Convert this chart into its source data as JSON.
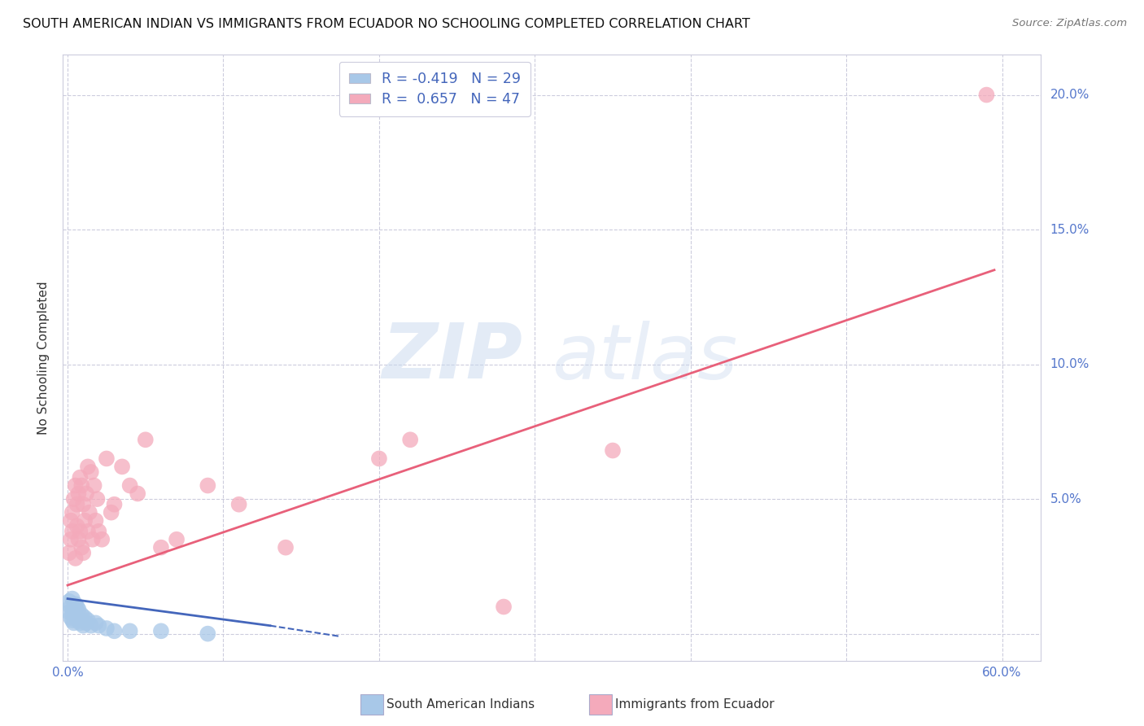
{
  "title": "SOUTH AMERICAN INDIAN VS IMMIGRANTS FROM ECUADOR NO SCHOOLING COMPLETED CORRELATION CHART",
  "source": "Source: ZipAtlas.com",
  "ylabel": "No Schooling Completed",
  "watermark_zip": "ZIP",
  "watermark_atlas": "atlas",
  "legend_blue_r": "R = -0.419",
  "legend_blue_n": "N = 29",
  "legend_pink_r": "R =  0.657",
  "legend_pink_n": "N = 47",
  "blue_color": "#A8C8E8",
  "pink_color": "#F4AABB",
  "blue_line_color": "#4466BB",
  "pink_line_color": "#E8607A",
  "background_color": "#FFFFFF",
  "grid_color": "#CCCCDD",
  "tick_color": "#5577CC",
  "legend_text_color": "#4466BB",
  "title_color": "#111111",
  "source_color": "#777777",
  "ylabel_color": "#333333",
  "xlim": [
    -0.003,
    0.625
  ],
  "ylim": [
    -0.01,
    0.215
  ],
  "yticks": [
    0.0,
    0.05,
    0.1,
    0.15,
    0.2
  ],
  "ytick_labels": [
    "",
    "5.0%",
    "10.0%",
    "15.0%",
    "20.0%"
  ],
  "blue_scatter_x": [
    0.001,
    0.001,
    0.002,
    0.002,
    0.003,
    0.003,
    0.003,
    0.004,
    0.004,
    0.005,
    0.005,
    0.006,
    0.006,
    0.007,
    0.007,
    0.008,
    0.009,
    0.01,
    0.011,
    0.012,
    0.013,
    0.015,
    0.018,
    0.02,
    0.025,
    0.03,
    0.04,
    0.06,
    0.09
  ],
  "blue_scatter_y": [
    0.008,
    0.012,
    0.006,
    0.01,
    0.005,
    0.008,
    0.013,
    0.004,
    0.009,
    0.007,
    0.011,
    0.006,
    0.01,
    0.005,
    0.009,
    0.004,
    0.007,
    0.003,
    0.006,
    0.004,
    0.005,
    0.003,
    0.004,
    0.003,
    0.002,
    0.001,
    0.001,
    0.001,
    0.0
  ],
  "pink_scatter_x": [
    0.001,
    0.002,
    0.002,
    0.003,
    0.003,
    0.004,
    0.005,
    0.005,
    0.006,
    0.006,
    0.007,
    0.007,
    0.008,
    0.008,
    0.009,
    0.009,
    0.01,
    0.01,
    0.011,
    0.012,
    0.013,
    0.013,
    0.014,
    0.015,
    0.016,
    0.017,
    0.018,
    0.019,
    0.02,
    0.022,
    0.025,
    0.028,
    0.03,
    0.035,
    0.04,
    0.045,
    0.05,
    0.06,
    0.07,
    0.09,
    0.11,
    0.14,
    0.2,
    0.22,
    0.28,
    0.35,
    0.59
  ],
  "pink_scatter_y": [
    0.03,
    0.035,
    0.042,
    0.038,
    0.045,
    0.05,
    0.028,
    0.055,
    0.04,
    0.048,
    0.035,
    0.052,
    0.038,
    0.058,
    0.032,
    0.055,
    0.03,
    0.048,
    0.042,
    0.052,
    0.038,
    0.062,
    0.045,
    0.06,
    0.035,
    0.055,
    0.042,
    0.05,
    0.038,
    0.035,
    0.065,
    0.045,
    0.048,
    0.062,
    0.055,
    0.052,
    0.072,
    0.032,
    0.035,
    0.055,
    0.048,
    0.032,
    0.065,
    0.072,
    0.01,
    0.068,
    0.2
  ],
  "blue_line_x": [
    0.0,
    0.13,
    0.17
  ],
  "blue_line_y": [
    0.013,
    0.003,
    0.0
  ],
  "blue_line_solid_end": 0.13,
  "pink_line_x": [
    0.0,
    0.595
  ],
  "pink_line_y": [
    0.018,
    0.135
  ]
}
